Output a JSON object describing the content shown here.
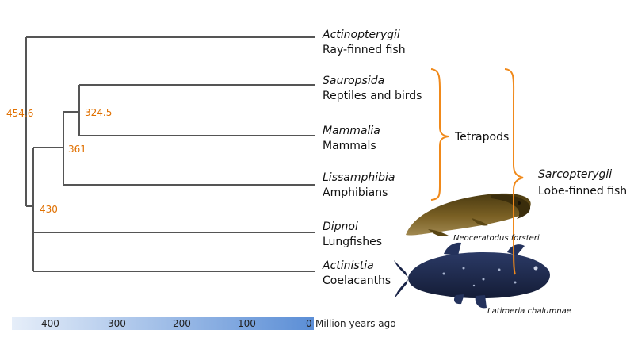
{
  "taxa": [
    {
      "latin": "Actinopterygii",
      "common": "Ray-finned fish"
    },
    {
      "latin": "Sauropsida",
      "common": "Reptiles and birds"
    },
    {
      "latin": "Mammalia",
      "common": "Mammals"
    },
    {
      "latin": "Lissamphibia",
      "common": "Amphibians"
    },
    {
      "latin": "Dipnoi",
      "common": "Lungfishes"
    },
    {
      "latin": "Actinistia",
      "common": "Coelacanths"
    }
  ],
  "node_ages": {
    "root": "454.6",
    "amniota": "324.5",
    "tetrapoda": "361",
    "sarcopterygii": "430"
  },
  "groups": {
    "tetrapods": "Tetrapods",
    "sarcopterygii_latin": "Sarcopterygii",
    "sarcopterygii_common": "Lobe-finned fish"
  },
  "species": {
    "lungfish": "Neoceratodus forsteri",
    "coelacanth": "Latimeria chalumnae"
  },
  "timescale": {
    "ticks": [
      "400",
      "300",
      "200",
      "100",
      "0"
    ],
    "unit": "Million years ago"
  },
  "colors": {
    "branch": "#555555",
    "age_label": "#e07000",
    "bracket": "#f0891a",
    "lungfish": "#6b5418",
    "coelacanth": "#1d2a4e",
    "scale_light": "#e6eef9",
    "scale_dark": "#5b8ed6"
  }
}
